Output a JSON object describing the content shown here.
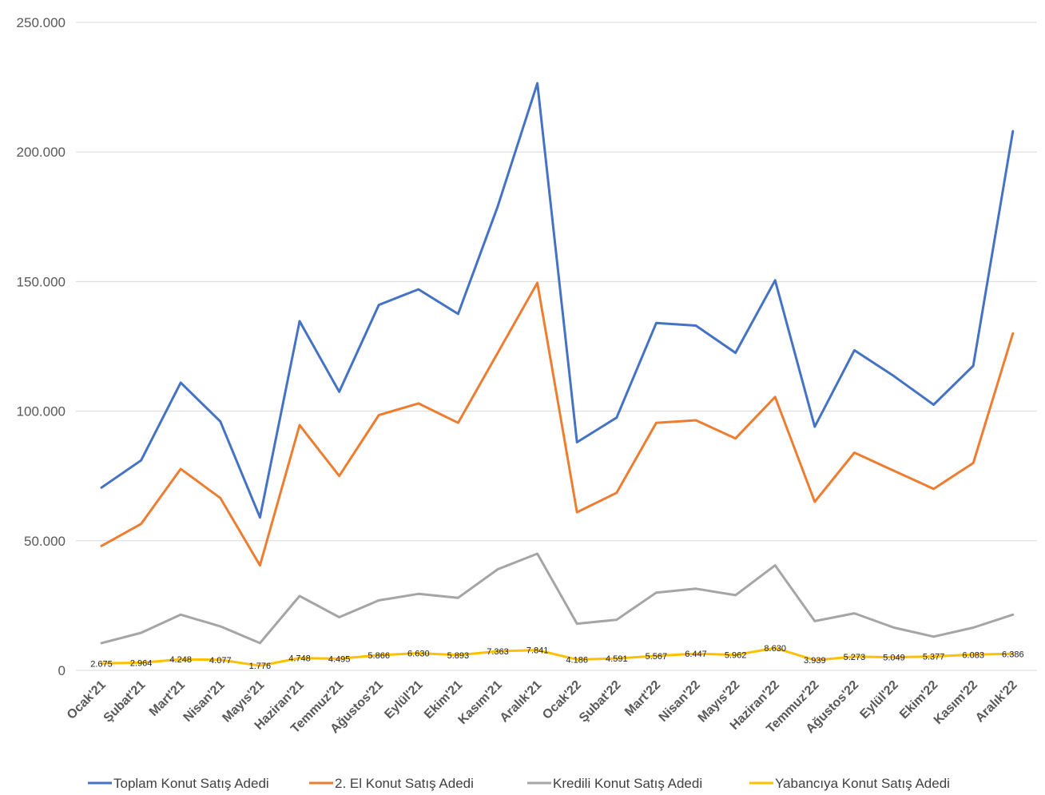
{
  "chart_data": {
    "type": "line",
    "title": "",
    "xlabel": "",
    "ylabel": "",
    "ylim": [
      0,
      250000
    ],
    "y_ticks": [
      0,
      50000,
      100000,
      150000,
      200000,
      250000
    ],
    "y_tick_labels": [
      "0",
      "50.000",
      "100.000",
      "150.000",
      "200.000",
      "250.000"
    ],
    "grid": "horizontal",
    "legend_position": "bottom",
    "categories": [
      "Ocak'21",
      "Şubat'21",
      "Mart'21",
      "Nisan'21",
      "Mayıs'21",
      "Haziran'21",
      "Temmuz'21",
      "Ağustos'21",
      "Eylül'21",
      "Ekim'21",
      "Kasım'21",
      "Aralık'21",
      "Ocak'22",
      "Şubat'22",
      "Mart'22",
      "Nisan'22",
      "Mayıs'22",
      "Haziran'22",
      "Temmuz'22",
      "Ağustos'22",
      "Eylül'22",
      "Ekim'22",
      "Kasım'22",
      "Aralık'22"
    ],
    "series": [
      {
        "name": "Toplam Konut Satış Adedi",
        "color": "#4472C4",
        "values": [
          70500,
          81000,
          111000,
          96000,
          59000,
          134700,
          107500,
          141000,
          147000,
          137500,
          179000,
          226500,
          88000,
          97500,
          134000,
          133000,
          122500,
          150500,
          94000,
          123500,
          113500,
          102500,
          117500,
          208000
        ]
      },
      {
        "name": "2. El Konut Satış Adedi",
        "color": "#ED7D31",
        "values": [
          48000,
          56500,
          77700,
          66500,
          40500,
          94600,
          75000,
          98500,
          103000,
          95500,
          122500,
          149500,
          61000,
          68500,
          95500,
          96500,
          89500,
          105500,
          65000,
          84000,
          77000,
          70000,
          80000,
          130000
        ]
      },
      {
        "name": "Kredili Konut Satış Adedi",
        "color": "#A5A5A5",
        "values": [
          10500,
          14500,
          21500,
          17000,
          10500,
          28700,
          20500,
          27000,
          29500,
          28000,
          39000,
          45000,
          18000,
          19500,
          30000,
          31500,
          29000,
          40500,
          19000,
          22000,
          16500,
          13000,
          16500,
          21500
        ]
      },
      {
        "name": "Yabancıya Konut Satış Adedi",
        "color": "#FFC000",
        "values": [
          2675,
          2964,
          4248,
          4077,
          1776,
          4748,
          4495,
          5866,
          6630,
          5893,
          7363,
          7841,
          4186,
          4591,
          5567,
          6447,
          5962,
          8630,
          3939,
          5273,
          5049,
          5377,
          6083,
          6386
        ],
        "data_labels": [
          "2.675",
          "2.964",
          "4.248",
          "4.077",
          "1.776",
          "4.748",
          "4.495",
          "5.866",
          "6.630",
          "5.893",
          "7.363",
          "7.841",
          "4.186",
          "4.591",
          "5.567",
          "6.447",
          "5.962",
          "8.630",
          "3.939",
          "5.273",
          "5.049",
          "5.377",
          "6.083",
          "6.386"
        ]
      }
    ]
  }
}
